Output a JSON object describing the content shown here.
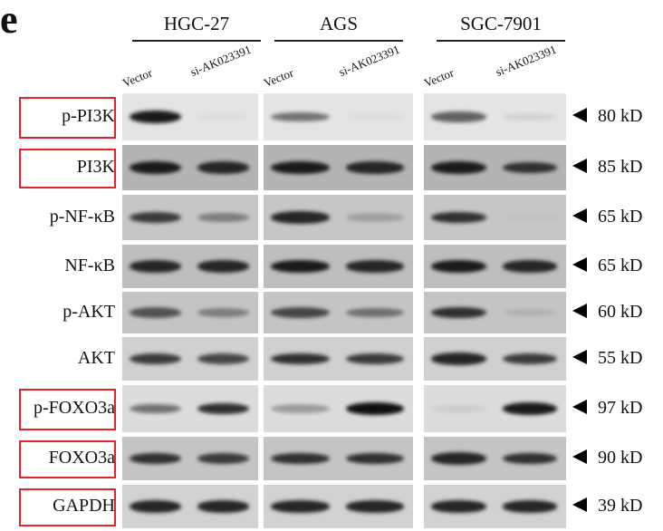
{
  "panel_letter": "e",
  "cell_lines": [
    {
      "name": "HGC-27",
      "lanes": [
        "Vector",
        "si-AK023391"
      ]
    },
    {
      "name": "AGS",
      "lanes": [
        "Vector",
        "si-AK023391"
      ]
    },
    {
      "name": "SGC-7901",
      "lanes": [
        "Vector",
        "si-AK023391"
      ]
    }
  ],
  "highlight_color": "#e0232a",
  "rows": [
    {
      "label": "p-PI3K",
      "size": "80 kD",
      "boxed": true,
      "background": "#e4e4e4",
      "band_intensity": [
        0.95,
        0.12,
        0.6,
        0.12,
        0.65,
        0.18
      ]
    },
    {
      "label": "PI3K",
      "size": "85 kD",
      "boxed": true,
      "background": "#b4b4b4",
      "band_intensity": [
        0.95,
        0.9,
        0.95,
        0.9,
        0.95,
        0.85
      ]
    },
    {
      "label": "p-NF-κB",
      "size": "65 kD",
      "boxed": false,
      "background": "#c6c6c6",
      "band_intensity": [
        0.8,
        0.55,
        0.9,
        0.4,
        0.85,
        0.2
      ]
    },
    {
      "label": "NF-κB",
      "size": "65 kD",
      "boxed": false,
      "background": "#bebebe",
      "band_intensity": [
        0.9,
        0.9,
        0.95,
        0.9,
        0.95,
        0.9
      ]
    },
    {
      "label": "p-AKT",
      "size": "60 kD",
      "boxed": false,
      "background": "#c4c4c4",
      "band_intensity": [
        0.7,
        0.55,
        0.75,
        0.6,
        0.85,
        0.3
      ]
    },
    {
      "label": "AKT",
      "size": "55 kD",
      "boxed": false,
      "background": "#d0d0d0",
      "band_intensity": [
        0.8,
        0.75,
        0.85,
        0.8,
        0.9,
        0.8
      ]
    },
    {
      "label": "p-FOXO3a",
      "size": "97 kD",
      "boxed": true,
      "background": "#dcdcdc",
      "band_intensity": [
        0.6,
        0.85,
        0.45,
        1.0,
        0.2,
        0.95
      ]
    },
    {
      "label": "FOXO3a",
      "size": "90 kD",
      "boxed": true,
      "background": "#c4c4c4",
      "band_intensity": [
        0.85,
        0.8,
        0.85,
        0.85,
        0.9,
        0.85
      ]
    },
    {
      "label": "GAPDH",
      "size": "39 kD",
      "boxed": true,
      "background": "#d2d2d2",
      "band_intensity": [
        0.9,
        0.9,
        0.9,
        0.9,
        0.9,
        0.9
      ]
    }
  ]
}
